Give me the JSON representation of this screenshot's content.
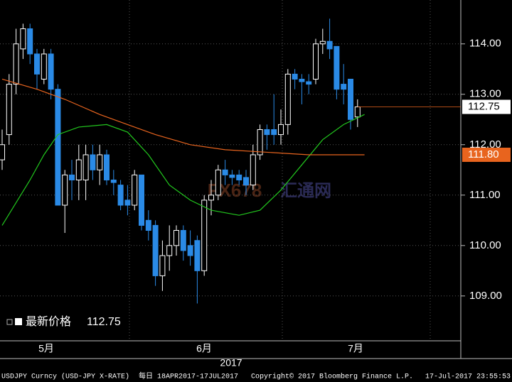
{
  "chart_data": {
    "type": "candlestick",
    "up_color": "#ffffff",
    "down_color": "#2a8ae6",
    "ylim": [
      108.11,
      114.87
    ],
    "yticks": [
      {
        "value": 109,
        "label": "109.00"
      },
      {
        "value": 110,
        "label": "110.00"
      },
      {
        "value": 111,
        "label": "111.00"
      },
      {
        "value": 112,
        "label": "112.00"
      },
      {
        "value": 113,
        "label": "113.00"
      },
      {
        "value": 114,
        "label": "114.00"
      }
    ],
    "grid": true,
    "open": [
      111.7,
      112.2,
      113.2,
      113.9,
      114.3,
      113.8,
      113.3,
      113.8,
      113.1,
      110.8,
      111.4,
      111.3,
      111.3,
      111.8,
      111.5,
      111.8,
      111.3,
      111.2,
      110.9,
      110.8,
      111.4,
      110.5,
      110.4,
      109.4,
      109.8,
      110.0,
      110.3,
      110.0,
      110.1,
      109.5,
      110.9,
      111.0,
      111.5,
      111.4,
      111.4,
      111.35,
      111.2,
      111.8,
      112.3,
      112.3,
      112.2,
      112.4,
      113.4,
      113.3,
      113.25,
      113.3,
      114.0,
      114.05,
      113.95,
      113.2,
      113.3,
      112.55
    ],
    "high": [
      112.3,
      113.4,
      114.3,
      114.4,
      114.4,
      113.9,
      113.9,
      113.9,
      113.2,
      111.5,
      111.7,
      112.0,
      112.0,
      112.0,
      112.0,
      111.9,
      111.5,
      111.3,
      111.2,
      111.5,
      111.4,
      110.7,
      110.5,
      110.1,
      110.4,
      110.4,
      110.4,
      110.3,
      110.2,
      111.0,
      111.3,
      111.6,
      111.7,
      111.5,
      111.5,
      111.5,
      112.0,
      112.4,
      112.4,
      113.0,
      112.7,
      113.5,
      113.5,
      113.4,
      113.4,
      114.1,
      114.3,
      114.5,
      113.95,
      113.6,
      113.3,
      112.9
    ],
    "low": [
      111.5,
      112.0,
      113.0,
      113.7,
      113.6,
      113.1,
      113.2,
      112.9,
      110.8,
      110.25,
      110.9,
      110.9,
      110.9,
      111.3,
      111.2,
      111.2,
      111.0,
      110.7,
      110.6,
      110.7,
      110.3,
      110.1,
      109.2,
      109.1,
      109.5,
      109.8,
      109.7,
      109.6,
      108.85,
      109.4,
      110.6,
      110.9,
      111.2,
      111.2,
      111.2,
      111.0,
      111.1,
      111.7,
      111.9,
      112.0,
      112.0,
      112.2,
      113.1,
      112.8,
      113.0,
      113.2,
      113.8,
      113.7,
      112.9,
      112.8,
      112.3,
      112.35
    ],
    "close": [
      112.0,
      113.2,
      114.0,
      114.3,
      113.8,
      113.4,
      113.8,
      113.1,
      110.8,
      111.4,
      111.3,
      111.7,
      111.8,
      111.5,
      111.8,
      111.3,
      111.25,
      110.8,
      110.8,
      111.4,
      110.4,
      110.3,
      109.4,
      109.8,
      110.0,
      110.3,
      109.9,
      109.8,
      109.5,
      110.9,
      111.0,
      111.5,
      111.4,
      111.35,
      111.3,
      111.2,
      111.8,
      112.3,
      112.2,
      112.2,
      112.4,
      113.4,
      113.3,
      113.25,
      113.2,
      114.0,
      114.05,
      113.9,
      113.1,
      113.1,
      112.5,
      112.75
    ],
    "moving_averages": [
      {
        "color": "#22c81e",
        "x": [
          0,
          4,
          6,
          8,
          11,
          15,
          18,
          21,
          24,
          27,
          30,
          34,
          37,
          40,
          43,
          46,
          49,
          52
        ],
        "values": [
          110.4,
          111.3,
          111.8,
          112.2,
          112.35,
          112.4,
          112.25,
          111.8,
          111.2,
          110.9,
          110.7,
          110.6,
          110.7,
          111.1,
          111.6,
          112.1,
          112.4,
          112.6
        ]
      },
      {
        "color": "#e8641e",
        "x": [
          0,
          5,
          9,
          14,
          18,
          22,
          27,
          32,
          38,
          44,
          52
        ],
        "values": [
          113.3,
          113.1,
          112.9,
          112.6,
          112.4,
          112.2,
          112.0,
          111.9,
          111.85,
          111.8,
          111.8
        ]
      }
    ],
    "last_price_tags": [
      {
        "value": 112.75,
        "color": "#ffffff"
      },
      {
        "value": {
          "value": 111.8,
          "label": "111.80"
        },
        "color": "#e8641e"
      }
    ],
    "legend_label": "最新价格",
    "legend_value": 112.75,
    "x_labels": [
      "5月",
      "6月",
      "7月"
    ],
    "year": "2017",
    "watermark": [
      "FX678",
      "汇通网"
    ],
    "footer": [
      "USDJPY Curncy (USD-JPY X-RATE)",
      "每日 18APR2017-17JUL2017",
      "Copyright© 2017 Bloomberg Finance L.P.",
      "17-Jul-2017 23:55:53"
    ]
  }
}
